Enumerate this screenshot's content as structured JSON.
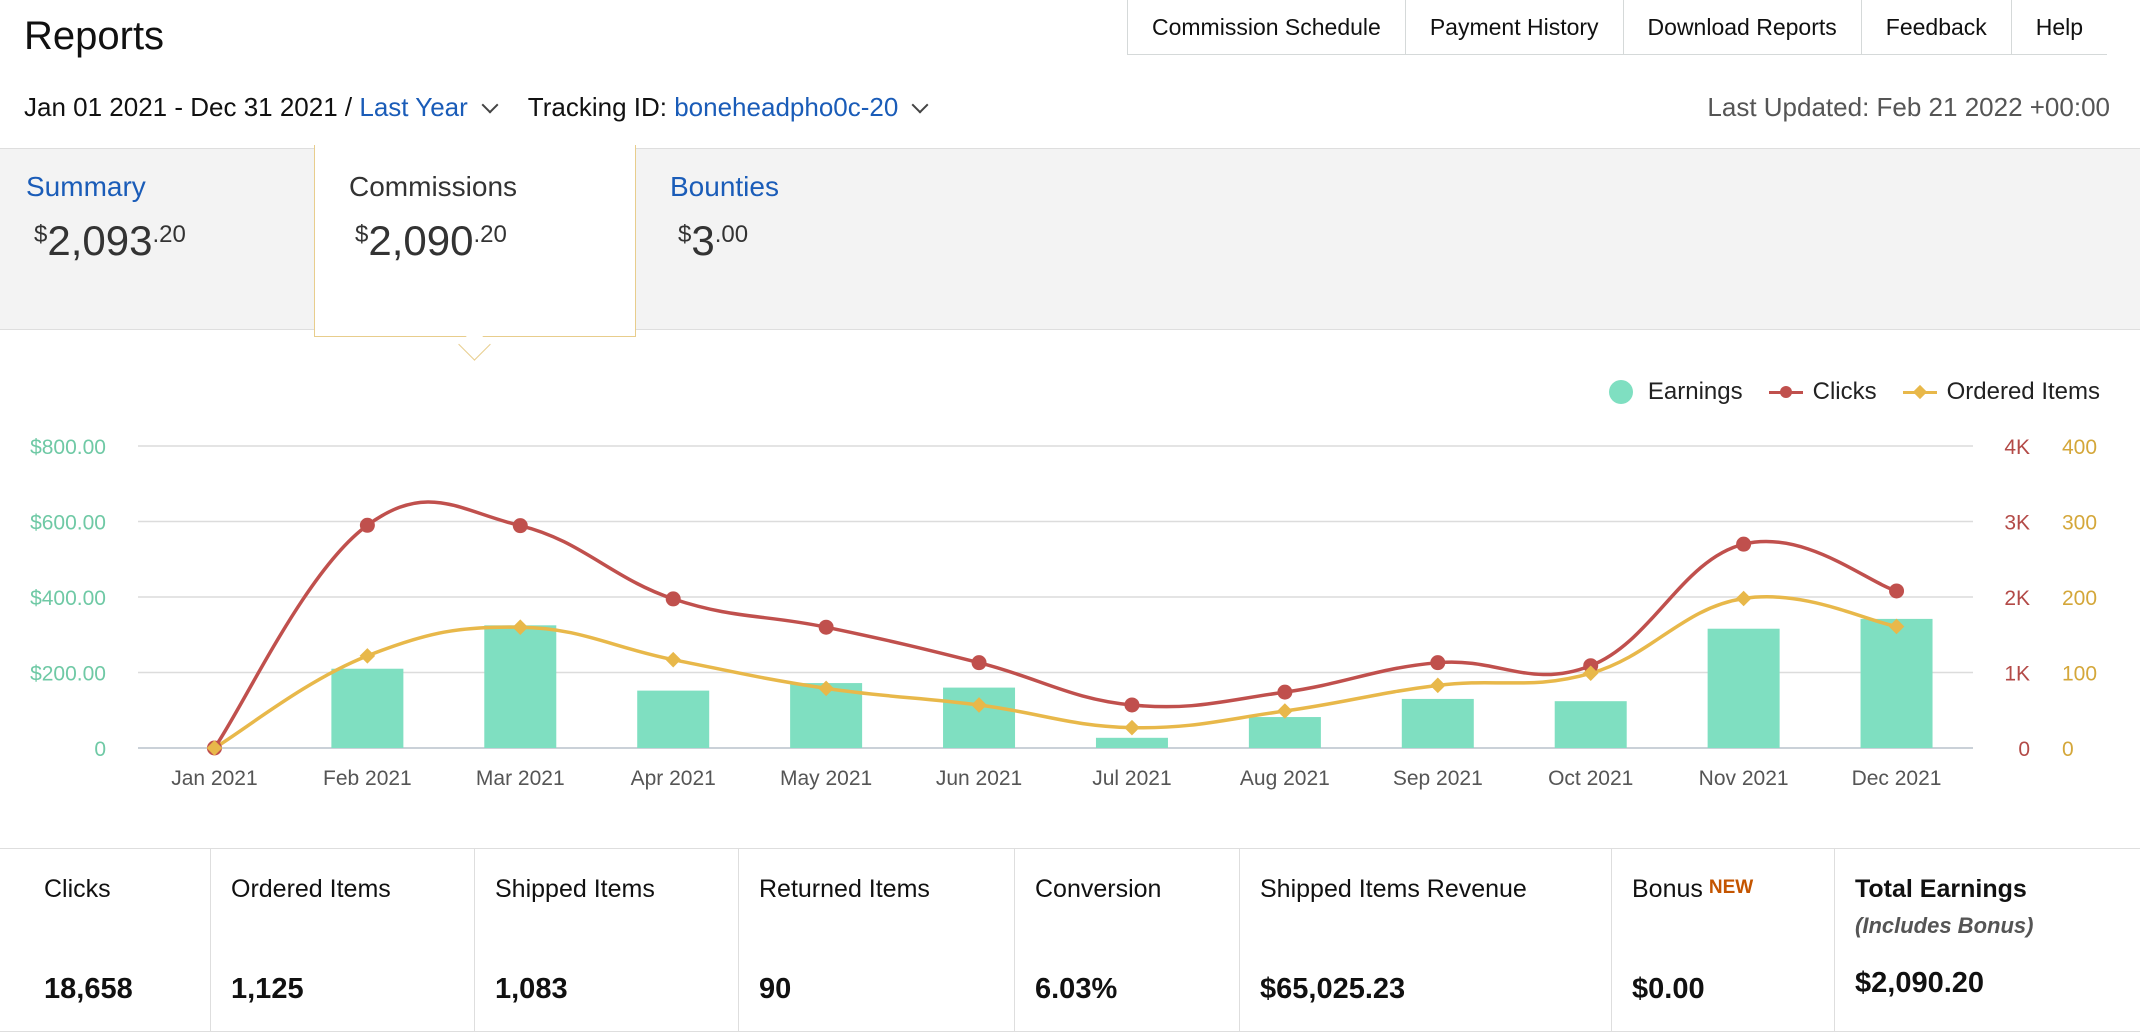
{
  "page": {
    "title": "Reports",
    "nav": [
      "Commission Schedule",
      "Payment History",
      "Download Reports",
      "Feedback",
      "Help"
    ]
  },
  "filters": {
    "date_range": "Jan 01 2021 - Dec 31 2021 /",
    "period": "Last Year",
    "tracking_label": "Tracking ID:",
    "tracking_id": "boneheadpho0c-20",
    "last_updated": "Last Updated: Feb 21 2022 +00:00"
  },
  "tabs": [
    {
      "label": "Summary",
      "currency": "$",
      "whole": "2,093",
      "cents": ".20"
    },
    {
      "label": "Commissions",
      "currency": "$",
      "whole": "2,090",
      "cents": ".20",
      "selected": true
    },
    {
      "label": "Bounties",
      "currency": "$",
      "whole": "3",
      "cents": ".00"
    }
  ],
  "legend": [
    "Earnings",
    "Clicks",
    "Ordered Items"
  ],
  "colors": {
    "earnings": "#7fdfc1",
    "clicks": "#c0504d",
    "ordered_items": "#e8b84a",
    "link": "#1a5cb8",
    "earnings_axis": "#6fc9a5",
    "clicks_axis": "#b34a47",
    "ordered_axis": "#d4a73a"
  },
  "chart_data": {
    "type": "bar",
    "categories": [
      "Jan 2021",
      "Feb 2021",
      "Mar 2021",
      "Apr 2021",
      "May 2021",
      "Jun 2021",
      "Jul 2021",
      "Aug 2021",
      "Sep 2021",
      "Oct 2021",
      "Nov 2021",
      "Dec 2021"
    ],
    "series": [
      {
        "name": "Earnings",
        "type": "bar",
        "axis": "left",
        "values": [
          0,
          210,
          325,
          152,
          172,
          160,
          27,
          82,
          130,
          124,
          316,
          342
        ]
      },
      {
        "name": "Clicks",
        "type": "line",
        "axis": "right1",
        "values": [
          0,
          2950,
          2945,
          1975,
          1600,
          1130,
          570,
          740,
          1130,
          1090,
          2700,
          2080
        ]
      },
      {
        "name": "Ordered Items",
        "type": "line",
        "axis": "right2",
        "values": [
          0,
          122,
          160,
          117,
          79,
          57,
          27,
          49,
          83,
          99,
          198,
          161
        ]
      }
    ],
    "y_axes": {
      "left": {
        "range": [
          0,
          800
        ],
        "ticks": [
          "0",
          "$200.00",
          "$400.00",
          "$600.00",
          "$800.00"
        ]
      },
      "right1": {
        "range": [
          0,
          4000
        ],
        "ticks": [
          "0",
          "1K",
          "2K",
          "3K",
          "4K"
        ]
      },
      "right2": {
        "range": [
          0,
          400
        ],
        "ticks": [
          "0",
          "100",
          "200",
          "300",
          "400"
        ]
      }
    },
    "grid": true,
    "legend_position": "top-right"
  },
  "stats": [
    {
      "label": "Clicks",
      "value": "18,658"
    },
    {
      "label": "Ordered Items",
      "value": "1,125"
    },
    {
      "label": "Shipped Items",
      "value": "1,083"
    },
    {
      "label": "Returned Items",
      "value": "90"
    },
    {
      "label": "Conversion",
      "value": "6.03%"
    },
    {
      "label": "Shipped Items Revenue",
      "value": "$65,025.23"
    },
    {
      "label": "Bonus",
      "badge": "NEW",
      "value": "$0.00"
    },
    {
      "label": "Total Earnings",
      "sublabel": "(Includes Bonus)",
      "value": "$2,090.20"
    }
  ]
}
